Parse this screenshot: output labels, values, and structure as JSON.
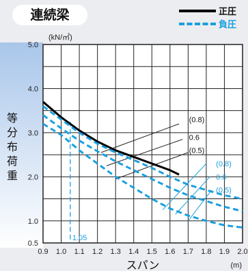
{
  "header": {
    "title": "連続梁",
    "legend": [
      {
        "label": "正圧",
        "color": "#000000",
        "style": "solid"
      },
      {
        "label": "負圧",
        "color": "#1aa0e0",
        "style": "dashed"
      }
    ]
  },
  "colors": {
    "solid": "#000000",
    "dashed": "#1aa0e0",
    "grid": "#222222",
    "plot_bg": "#ffffff",
    "sidebar_gradient_top": "#a9c6ea",
    "sidebar_gradient_bottom": "#ffffff"
  },
  "chart_data": {
    "type": "line",
    "title": "",
    "xlabel": "スパン",
    "x_unit": "(m)",
    "ylabel": "等分布荷重",
    "y_unit": "(kN/㎡)",
    "xlim": [
      0.9,
      2.0
    ],
    "ylim": [
      0.5,
      5.0
    ],
    "x_ticks": [
      "0.9",
      "1.0",
      "1.1",
      "1.2",
      "1.3",
      "1.4",
      "1.5",
      "1.6",
      "1.7",
      "1.8",
      "1.9",
      "2.0"
    ],
    "y_ticks": [
      {
        "value": 5.0,
        "label": "5.0"
      },
      {
        "value": 4.0,
        "label": "4.0"
      },
      {
        "value": 3.0,
        "label": "3.0"
      },
      {
        "value": 2.0,
        "label": "2.0"
      },
      {
        "value": 1.0,
        "label": "1.0"
      },
      {
        "value": 0.5,
        "label": "0.5"
      }
    ],
    "grid": true,
    "series": [
      {
        "label": "正圧",
        "style": "solid",
        "x": [
          0.9,
          1.0,
          1.1,
          1.2,
          1.3,
          1.4,
          1.5,
          1.6,
          1.65
        ],
        "y": [
          3.7,
          3.35,
          3.05,
          2.8,
          2.6,
          2.45,
          2.3,
          2.15,
          2.05
        ]
      },
      {
        "label": "負圧 (0.8)",
        "style": "dashed",
        "x": [
          0.9,
          1.0,
          1.1,
          1.2,
          1.3,
          1.4,
          1.5,
          1.6,
          1.7,
          1.8,
          1.9,
          2.0
        ],
        "y": [
          3.6,
          3.3,
          3.0,
          2.75,
          2.55,
          2.38,
          2.2,
          2.0,
          1.82,
          1.7,
          1.58,
          1.5
        ]
      },
      {
        "label": "負圧 0.6",
        "style": "dashed",
        "x": [
          0.9,
          1.0,
          1.1,
          1.2,
          1.3,
          1.4,
          1.5,
          1.6,
          1.7,
          1.8,
          1.9,
          2.0
        ],
        "y": [
          3.4,
          3.1,
          2.82,
          2.58,
          2.35,
          2.15,
          1.95,
          1.75,
          1.58,
          1.45,
          1.32,
          1.22
        ]
      },
      {
        "label": "負圧 (0.5)",
        "style": "dashed",
        "x": [
          0.9,
          1.0,
          1.1,
          1.2,
          1.3,
          1.4,
          1.5,
          1.6,
          1.7,
          1.8,
          1.9,
          2.0
        ],
        "y": [
          3.2,
          2.95,
          2.6,
          2.3,
          2.0,
          1.75,
          1.5,
          1.28,
          1.12,
          1.0,
          0.9,
          0.85
        ]
      }
    ],
    "annotations": {
      "solid": [
        {
          "label": "(0.8)",
          "x": 1.72,
          "y": 3.3
        },
        {
          "label": "0.6",
          "x": 1.72,
          "y": 2.9
        },
        {
          "label": "(0.5)",
          "x": 1.72,
          "y": 2.6
        }
      ],
      "dashed": [
        {
          "label": "(0.8)",
          "x": 1.85,
          "y": 2.3
        },
        {
          "label": "0.6",
          "x": 1.85,
          "y": 2.0
        },
        {
          "label": "(0.5)",
          "x": 1.85,
          "y": 1.7
        }
      ],
      "vline": {
        "label": "1.05",
        "x": 1.05
      }
    }
  }
}
